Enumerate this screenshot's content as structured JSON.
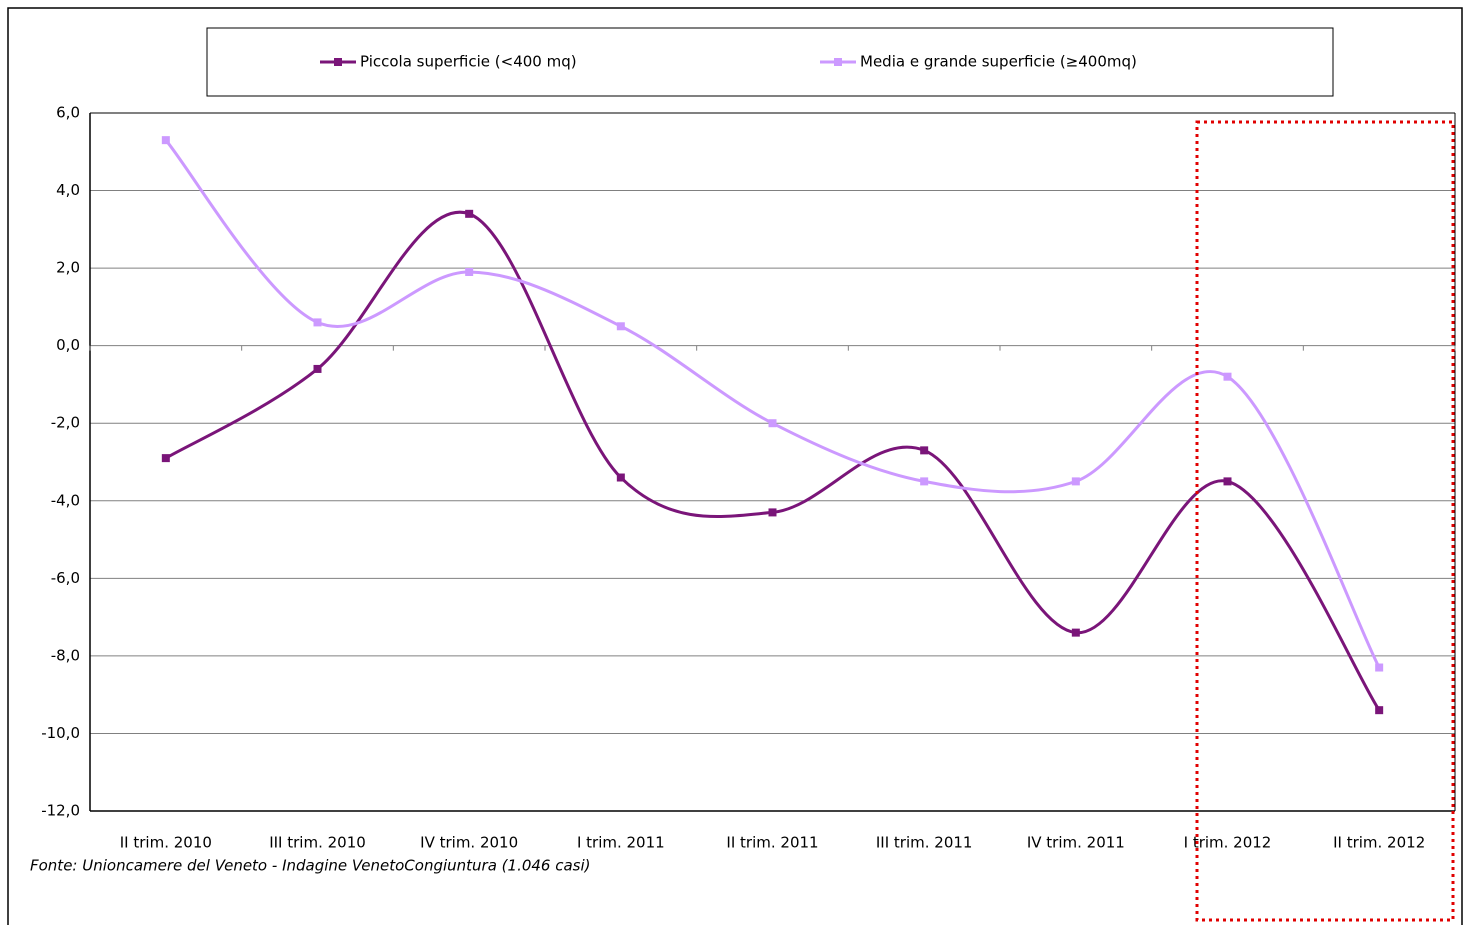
{
  "chart_data": {
    "type": "line",
    "categories": [
      "II trim. 2010",
      "III trim. 2010",
      "IV trim. 2010",
      "I trim. 2011",
      "II trim. 2011",
      "III trim. 2011",
      "IV trim. 2011",
      "I trim. 2012",
      "II trim. 2012"
    ],
    "series": [
      {
        "name": "Piccola superficie (<400 mq)",
        "color": "#7a1579",
        "values": [
          -2.9,
          -0.6,
          3.4,
          -3.4,
          -4.3,
          -2.7,
          -7.4,
          -3.5,
          -9.4
        ]
      },
      {
        "name": "Media e grande superficie (≥400mq)",
        "color": "#cc99ff",
        "values": [
          5.3,
          0.6,
          1.9,
          0.5,
          -2.0,
          -3.5,
          -3.5,
          -0.8,
          -8.3
        ]
      }
    ],
    "ylim": [
      -12,
      6
    ],
    "yticks": [
      {
        "value": -12,
        "label": "-12,0"
      },
      {
        "value": -10,
        "label": "-10,0"
      },
      {
        "value": -8,
        "label": "-8,0"
      },
      {
        "value": -6,
        "label": "-6,0"
      },
      {
        "value": -4,
        "label": "-4,0"
      },
      {
        "value": -2,
        "label": "-2,0"
      },
      {
        "value": 0,
        "label": "0,0"
      },
      {
        "value": 2,
        "label": "2,0"
      },
      {
        "value": 4,
        "label": "4,0"
      },
      {
        "value": 6,
        "label": "6,0"
      }
    ],
    "grid": true,
    "smooth": true,
    "source": "Fonte: Unioncamere del Veneto - Indagine VenetoCongiuntura (1.046 casi)"
  }
}
